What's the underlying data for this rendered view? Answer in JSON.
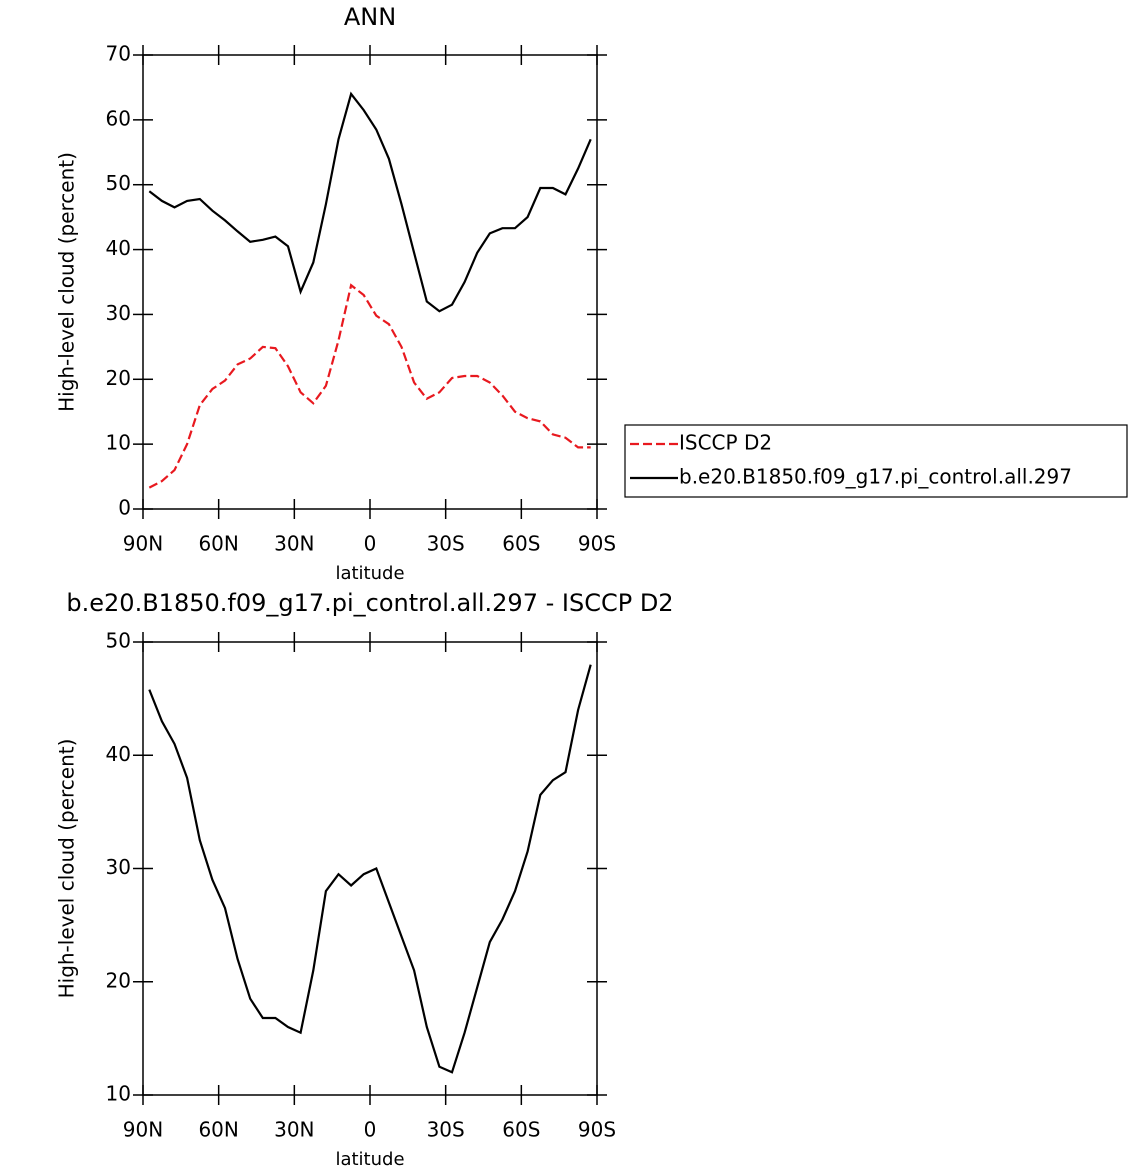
{
  "chart_data": [
    {
      "type": "line",
      "title": "ANN",
      "x_label": "latitude",
      "y_label": "High-level cloud (percent)",
      "x": [
        87.5,
        82.5,
        77.5,
        72.5,
        67.5,
        62.5,
        57.5,
        52.5,
        47.5,
        42.5,
        37.5,
        32.5,
        27.5,
        22.5,
        17.5,
        12.5,
        7.5,
        2.5,
        -2.5,
        -7.5,
        -12.5,
        -17.5,
        -22.5,
        -27.5,
        -32.5,
        -37.5,
        -42.5,
        -47.5,
        -52.5,
        -57.5,
        -62.5,
        -67.5,
        -72.5,
        -77.5,
        -82.5,
        -87.5
      ],
      "series": [
        {
          "name": "ISCCP D2",
          "color": "#e8191f",
          "dashed": true,
          "values": [
            3.3,
            4.3,
            6,
            10,
            16,
            18.5,
            19.8,
            22.3,
            23.2,
            25,
            24.8,
            22,
            18,
            16.3,
            19,
            26,
            34.5,
            33,
            29.8,
            28.5,
            25,
            19.5,
            17,
            18,
            20.2,
            20.5,
            20.5,
            19.5,
            17.5,
            15,
            14,
            13.5,
            11.5,
            11,
            9.5,
            9.5
          ]
        },
        {
          "name": "b.e20.B1850.f09_g17.pi_control.all.297",
          "color": "#000000",
          "dashed": false,
          "values": [
            49,
            47.5,
            46.5,
            47.5,
            47.8,
            46,
            44.5,
            42.8,
            41.2,
            41.5,
            42,
            40.5,
            33.5,
            38,
            47,
            57,
            64,
            61.5,
            58.5,
            54,
            47,
            39.5,
            32,
            30.5,
            31.5,
            35,
            39.5,
            42.5,
            43.3,
            43.3,
            45,
            49.5,
            49.5,
            48.5,
            52.5,
            57
          ]
        }
      ],
      "xlim": [
        90,
        -90
      ],
      "xticks": [
        {
          "value": 90,
          "label": "90N"
        },
        {
          "value": 60,
          "label": "60N"
        },
        {
          "value": 30,
          "label": "30N"
        },
        0,
        {
          "value": -30,
          "label": "30S"
        },
        {
          "value": -60,
          "label": "60S"
        },
        {
          "value": -90,
          "label": "90S"
        }
      ],
      "ylim": [
        0,
        70
      ],
      "yticks": [
        0,
        10,
        20,
        30,
        40,
        50,
        60,
        70
      ],
      "legend": "right"
    },
    {
      "type": "line",
      "title": "b.e20.B1850.f09_g17.pi_control.all.297 - ISCCP D2",
      "x_label": "latitude",
      "y_label": "High-level cloud (percent)",
      "x": [
        87.5,
        82.5,
        77.5,
        72.5,
        67.5,
        62.5,
        57.5,
        52.5,
        47.5,
        42.5,
        37.5,
        32.5,
        27.5,
        22.5,
        17.5,
        12.5,
        7.5,
        2.5,
        -2.5,
        -7.5,
        -12.5,
        -17.5,
        -22.5,
        -27.5,
        -32.5,
        -37.5,
        -42.5,
        -47.5,
        -52.5,
        -57.5,
        -62.5,
        -67.5,
        -72.5,
        -77.5,
        -82.5,
        -87.5
      ],
      "series": [
        {
          "color": "#000000",
          "dashed": false,
          "values": [
            45.8,
            43,
            41,
            38,
            32.5,
            29,
            26.5,
            22,
            18.5,
            16.8,
            16.8,
            16,
            15.5,
            21,
            28,
            29.5,
            28.5,
            29.5,
            30,
            27,
            24,
            21,
            16,
            12.5,
            12,
            15.5,
            19.5,
            23.5,
            25.5,
            28,
            31.5,
            36.5,
            37.8,
            38.5,
            44,
            48
          ]
        }
      ],
      "xlim": [
        90,
        -90
      ],
      "xticks": [
        {
          "value": 90,
          "label": "90N"
        },
        {
          "value": 60,
          "label": "60N"
        },
        {
          "value": 30,
          "label": "30N"
        },
        0,
        {
          "value": -30,
          "label": "30S"
        },
        {
          "value": -60,
          "label": "60S"
        },
        {
          "value": -90,
          "label": "90S"
        }
      ],
      "ylim": [
        10,
        50
      ],
      "yticks": [
        10,
        20,
        30,
        40,
        50
      ]
    }
  ]
}
